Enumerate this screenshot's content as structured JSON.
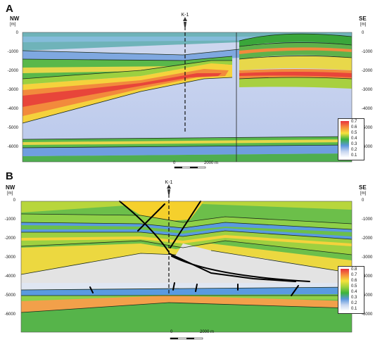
{
  "panel_a": {
    "letter": "A",
    "left_dir": "NW",
    "right_dir": "SE",
    "unit_left": "[m]",
    "unit_right": "[m]",
    "well_name": "K-1",
    "depth_ticks": [
      "0",
      "-1000",
      "-2000",
      "-3000",
      "-4000",
      "-5000",
      "-6000"
    ],
    "scale": {
      "start": "0",
      "end": "2000 m"
    },
    "legend": [
      "0.7",
      "0.6",
      "0.5",
      "0.4",
      "0.3",
      "0.2",
      "0.1"
    ]
  },
  "panel_b": {
    "letter": "B",
    "left_dir": "NW",
    "right_dir": "SE",
    "unit_left": "[m]",
    "unit_right": "[m]",
    "well_name": "K-1",
    "depth_ticks": [
      "0",
      "-1000",
      "-2000",
      "-3000",
      "-4000",
      "-5000",
      "-6000"
    ],
    "scale": {
      "start": "0",
      "end": "2000 m"
    },
    "legend": [
      "0.8",
      "0.7",
      "0.6",
      "0.5",
      "0.4",
      "0.3",
      "0.2",
      "0.1"
    ]
  },
  "colors": {
    "red": "#e8323c",
    "orange": "#f58c3c",
    "yellow": "#f5e23c",
    "green": "#3cb43c",
    "light_green": "#a0d23c",
    "blue": "#5a96dc",
    "pale_blue": "#c8d7f0",
    "grey": "#e6e6e6"
  }
}
